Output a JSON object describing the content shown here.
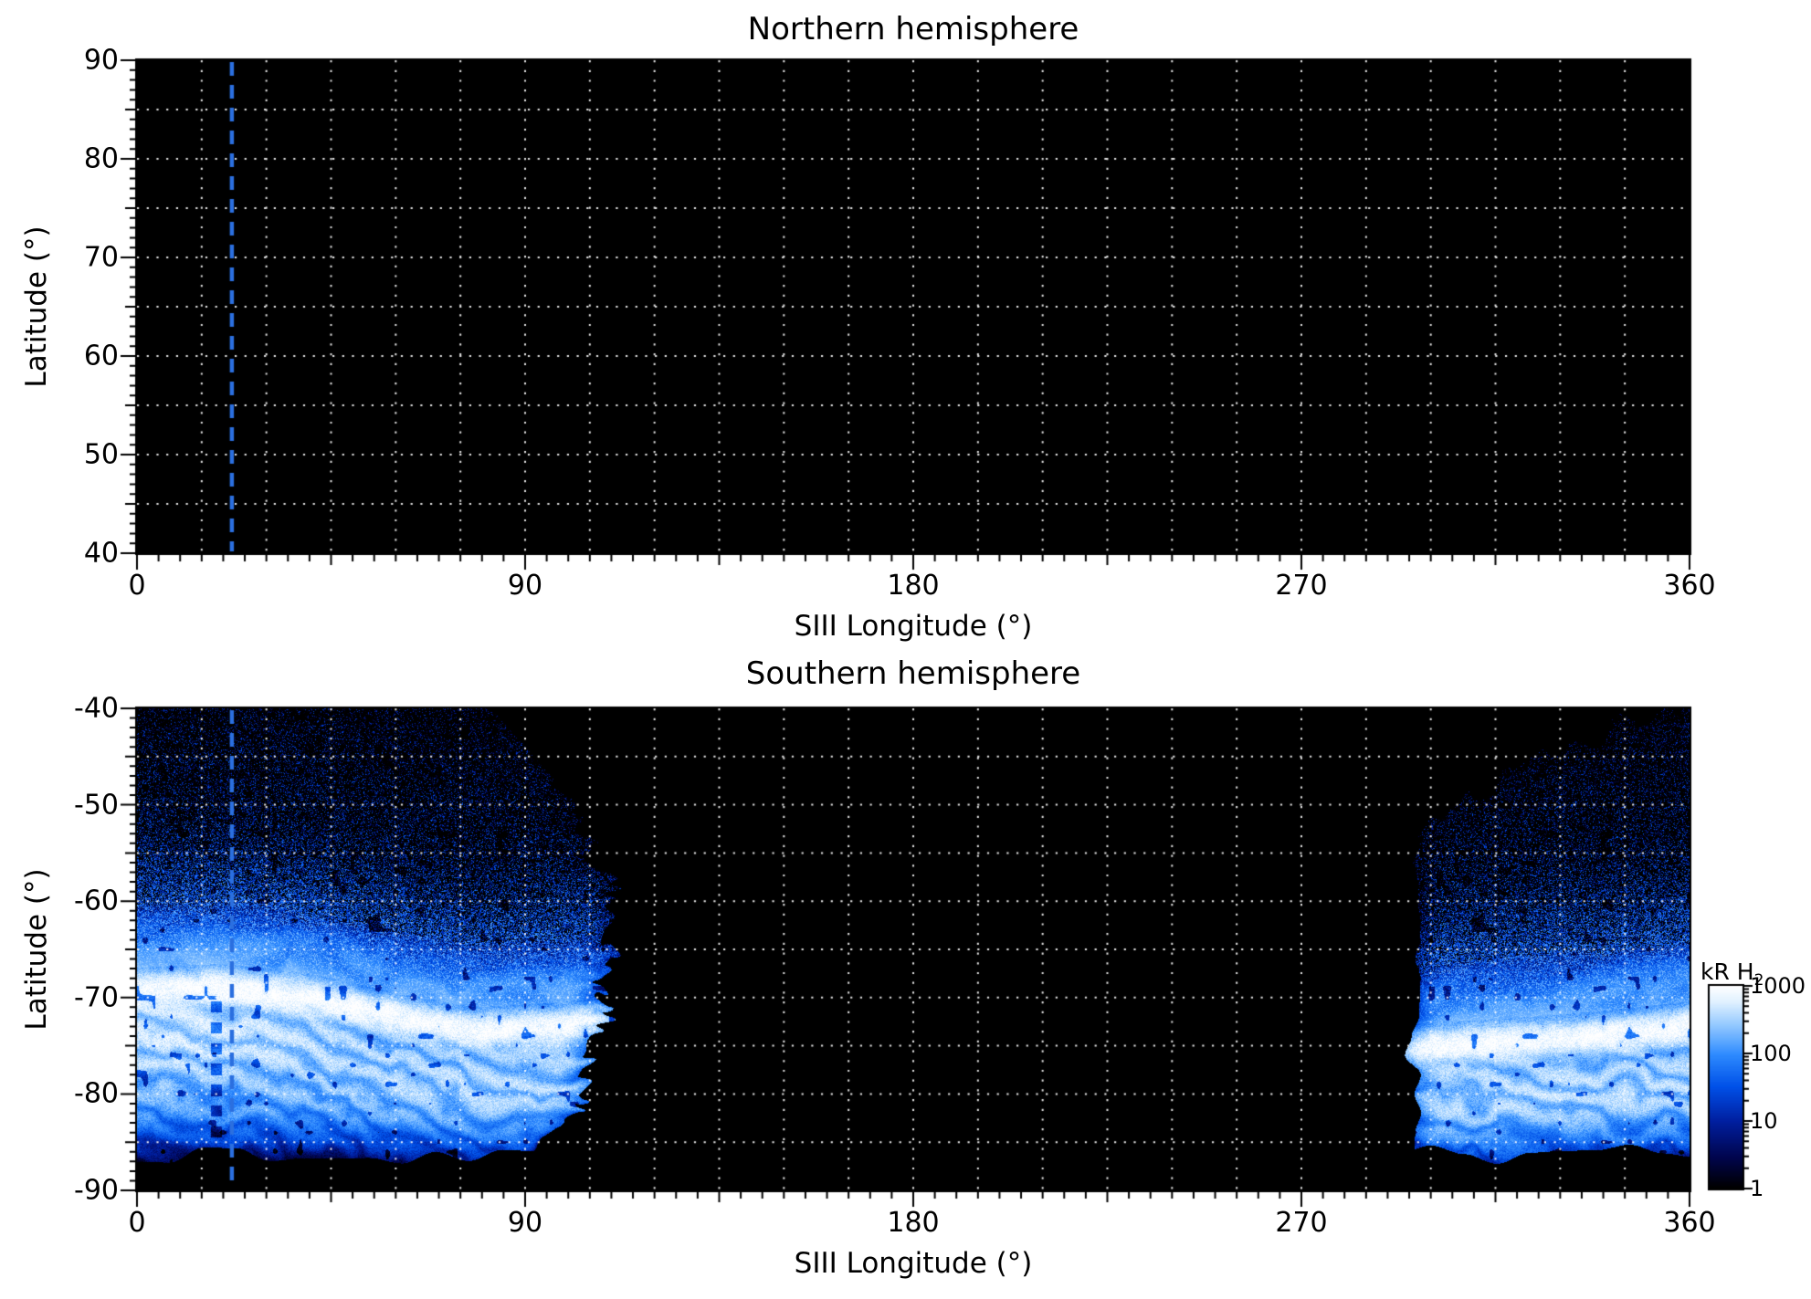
{
  "chart_data": {
    "type": "heatmap",
    "description": "Maps of H2 auroral emission brightness versus SIII longitude and latitude for the northern and southern hemispheres. The northern map contains no data (all black); the southern map shows speckled auroral emission in two longitude sectors with a bright main auroral arc near -70 to -75 latitude.",
    "marker_line": {
      "longitude_deg": 22,
      "color": "#2b6fdf",
      "style": "dashed",
      "present_in_both_panels": true
    },
    "panels": [
      {
        "title": "Northern hemisphere",
        "xlabel": "SIII Longitude (°)",
        "ylabel": "Latitude (°)",
        "xlim": [
          0,
          360
        ],
        "ylim_top_bottom": [
          90,
          40
        ],
        "xticks": [
          0,
          90,
          180,
          270,
          360
        ],
        "yticks": [
          90,
          80,
          70,
          60,
          50,
          40
        ],
        "grid": {
          "lon_step_deg": 15,
          "lat_step_deg": 5,
          "color": "#ffffff",
          "style": "dotted"
        },
        "marker_longitude_deg": 22,
        "emission": "none"
      },
      {
        "title": "Southern hemisphere",
        "xlabel": "SIII Longitude (°)",
        "ylabel": "Latitude (°)",
        "xlim": [
          0,
          360
        ],
        "ylim_top_bottom": [
          -40,
          -90
        ],
        "xticks": [
          0,
          90,
          180,
          270,
          360
        ],
        "yticks": [
          -40,
          -50,
          -60,
          -70,
          -80,
          -90
        ],
        "grid": {
          "lon_step_deg": 15,
          "lat_step_deg": 5,
          "color": "#ffffff",
          "style": "dotted"
        },
        "marker_longitude_deg": 22,
        "emission": "auroral"
      }
    ],
    "south_emission": {
      "bottom_lat": -86.3,
      "left_region": {
        "lon_range": [
          0,
          110
        ],
        "full_top_coverage_lon_range": [
          0,
          82
        ],
        "right_boundary_points_lat_lon": [
          [
            -86,
            90
          ],
          [
            -83,
            99
          ],
          [
            -78,
            106
          ],
          [
            -70,
            110
          ],
          [
            -60,
            109
          ],
          [
            -52,
            105
          ],
          [
            -46,
            97
          ],
          [
            -40,
            84
          ]
        ],
        "main_arc_points_lon_lat": [
          [
            0,
            -69.4
          ],
          [
            20,
            -69.0
          ],
          [
            40,
            -70.0
          ],
          [
            60,
            -72.0
          ],
          [
            78,
            -73.5
          ],
          [
            95,
            -73.1
          ],
          [
            110,
            -72.5
          ]
        ],
        "peak_intensity_kR": 1000
      },
      "right_region": {
        "lon_range": [
          296,
          360
        ],
        "top_boundary_points_lon_lat": [
          [
            296,
            -53
          ],
          [
            310,
            -49
          ],
          [
            325,
            -45.5
          ],
          [
            340,
            -42.5
          ],
          [
            352,
            -40
          ],
          [
            360,
            -40
          ]
        ],
        "main_arc_points_lon_lat": [
          [
            296,
            -75.2
          ],
          [
            320,
            -74.6
          ],
          [
            340,
            -73.9
          ],
          [
            360,
            -72.9
          ]
        ],
        "peak_intensity_kR": 1000
      }
    },
    "colorbar": {
      "label": "kR H2",
      "label_main": "kR H",
      "label_sub": "2",
      "scale": "log",
      "min_kR": 1,
      "max_kR": 1000,
      "tick_values": [
        1000,
        100,
        10,
        1
      ],
      "colormap_stops": [
        [
          0,
          "#000000"
        ],
        [
          0.15,
          "#00054d"
        ],
        [
          0.33,
          "#001fa0"
        ],
        [
          0.5,
          "#0050e8"
        ],
        [
          0.66,
          "#2e8bff"
        ],
        [
          0.8,
          "#8fc7ff"
        ],
        [
          0.92,
          "#e0f1ff"
        ],
        [
          1,
          "#ffffff"
        ]
      ]
    }
  }
}
